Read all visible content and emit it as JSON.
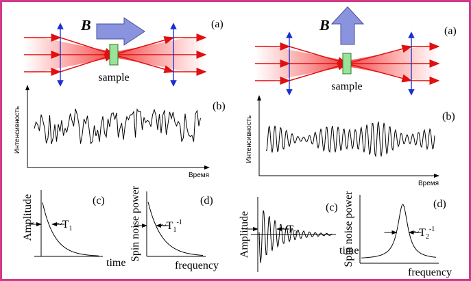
{
  "left": {
    "a": {
      "field": "B",
      "panel": "(a)",
      "sample": "sample"
    },
    "b": {
      "panel": "(b)",
      "ylabel": "Интенсивность",
      "xlabel": "Время"
    },
    "c": {
      "panel": "(c)",
      "ylabel": "Amplitude",
      "xlabel": "time",
      "width": {
        "prefix": "~T",
        "sub": "1"
      }
    },
    "d": {
      "panel": "(d)",
      "ylabel": "Spin noise power",
      "xlabel": "frequency",
      "width": {
        "prefix": "~T",
        "sub": "1",
        "sup": "-1"
      }
    }
  },
  "right": {
    "a": {
      "field": "B",
      "panel": "(a)",
      "sample": "sample"
    },
    "b": {
      "panel": "(b)",
      "ylabel": "Интенсивность",
      "xlabel": "Время"
    },
    "c": {
      "panel": "(c)",
      "ylabel": "Amplitude",
      "xlabel": "time",
      "width": {
        "prefix": "~T",
        "sub": "2"
      }
    },
    "d": {
      "panel": "(d)",
      "ylabel": "Spin noise power",
      "xlabel": "frequency",
      "width": {
        "prefix": "~T",
        "sub": "2",
        "sup": "-1"
      }
    }
  }
}
